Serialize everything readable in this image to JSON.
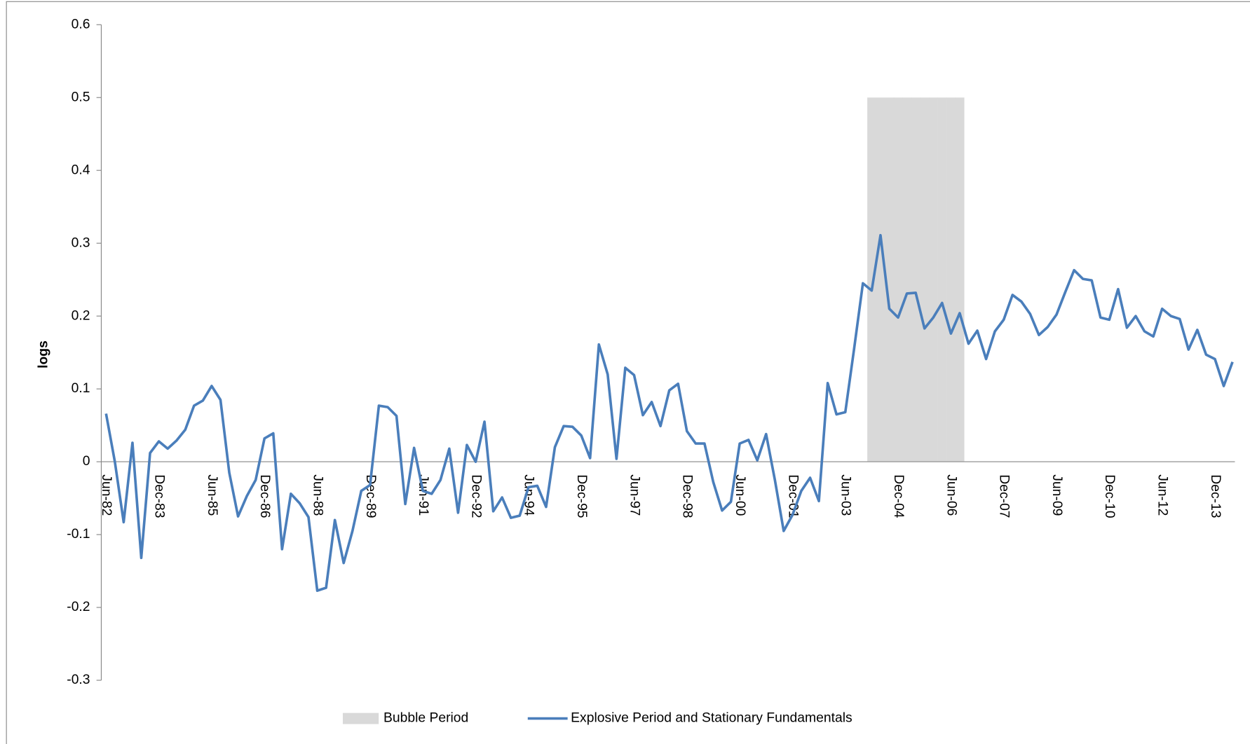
{
  "chart_data": {
    "type": "line",
    "y_label": "logs",
    "ylim": [
      -0.3,
      0.6
    ],
    "yticks": [
      -0.3,
      -0.2,
      -0.1,
      0,
      0.1,
      0.2,
      0.3,
      0.4,
      0.5,
      0.6
    ],
    "categories": [
      "Jun-82",
      null,
      null,
      null,
      null,
      null,
      "Dec-83",
      null,
      null,
      null,
      null,
      null,
      "Jun-85",
      null,
      null,
      null,
      null,
      null,
      "Dec-86",
      null,
      null,
      null,
      null,
      null,
      "Jun-88",
      null,
      null,
      null,
      null,
      null,
      "Dec-89",
      null,
      null,
      null,
      null,
      null,
      "Jun-91",
      null,
      null,
      null,
      null,
      null,
      "Dec-92",
      null,
      null,
      null,
      null,
      null,
      "Jun-94",
      null,
      null,
      null,
      null,
      null,
      "Dec-95",
      null,
      null,
      null,
      null,
      null,
      "Jun-97",
      null,
      null,
      null,
      null,
      null,
      "Dec-98",
      null,
      null,
      null,
      null,
      null,
      "Jun-00",
      null,
      null,
      null,
      null,
      null,
      "Dec-01",
      null,
      null,
      null,
      null,
      null,
      "Jun-03",
      null,
      null,
      null,
      null,
      null,
      "Dec-04",
      null,
      null,
      null,
      null,
      null,
      "Jun-06",
      null,
      null,
      null,
      null,
      null,
      "Dec-07",
      null,
      null,
      null,
      null,
      null,
      "Jun-09",
      null,
      null,
      null,
      null,
      null,
      "Dec-10",
      null,
      null,
      null,
      null,
      null,
      "Jun-12",
      null,
      null,
      null,
      null,
      null,
      "Dec-13",
      null,
      null
    ],
    "series": [
      {
        "name": "Bubble Period",
        "type": "bar",
        "color": "#d9d9d9",
        "values": [
          null,
          null,
          null,
          null,
          null,
          null,
          null,
          null,
          null,
          null,
          null,
          null,
          null,
          null,
          null,
          null,
          null,
          null,
          null,
          null,
          null,
          null,
          null,
          null,
          null,
          null,
          null,
          null,
          null,
          null,
          null,
          null,
          null,
          null,
          null,
          null,
          null,
          null,
          null,
          null,
          null,
          null,
          null,
          null,
          null,
          null,
          null,
          null,
          null,
          null,
          null,
          null,
          null,
          null,
          null,
          null,
          null,
          null,
          null,
          null,
          null,
          null,
          null,
          null,
          null,
          null,
          null,
          null,
          null,
          null,
          null,
          null,
          null,
          null,
          null,
          null,
          null,
          null,
          null,
          null,
          null,
          null,
          null,
          null,
          null,
          null,
          null,
          0.5,
          0.5,
          0.5,
          0.5,
          0.5,
          0.5,
          0.5,
          0.5,
          0.5,
          0.5,
          0.5,
          null,
          null,
          null,
          null,
          null,
          null,
          null,
          null,
          null,
          null,
          null,
          null,
          null,
          null,
          null,
          null,
          null,
          null,
          null,
          null,
          null,
          null,
          null,
          null,
          null,
          null,
          null,
          null,
          null,
          null,
          null
        ]
      },
      {
        "name": "Explosive Period and Stationary Fundamentals",
        "type": "line",
        "color": "#4a7ebb",
        "values": [
          0.066,
          0.0,
          -0.083,
          0.026,
          -0.132,
          0.012,
          0.028,
          0.018,
          0.029,
          0.044,
          0.077,
          0.084,
          0.104,
          0.085,
          -0.015,
          -0.075,
          -0.047,
          -0.025,
          0.032,
          0.039,
          -0.12,
          -0.044,
          -0.057,
          -0.076,
          -0.177,
          -0.173,
          -0.08,
          -0.139,
          -0.095,
          -0.04,
          -0.032,
          0.077,
          0.075,
          0.063,
          -0.058,
          0.019,
          -0.04,
          -0.044,
          -0.025,
          0.018,
          -0.07,
          0.023,
          0.0,
          0.055,
          -0.068,
          -0.049,
          -0.077,
          -0.074,
          -0.035,
          -0.033,
          -0.062,
          0.02,
          0.049,
          0.048,
          0.036,
          0.005,
          0.161,
          0.12,
          0.004,
          0.129,
          0.119,
          0.064,
          0.082,
          0.049,
          0.098,
          0.107,
          0.042,
          0.025,
          0.025,
          -0.028,
          -0.067,
          -0.055,
          0.025,
          0.03,
          0.002,
          0.038,
          -0.025,
          -0.095,
          -0.073,
          -0.04,
          -0.022,
          -0.054,
          0.108,
          0.065,
          0.068,
          0.155,
          0.245,
          0.235,
          0.311,
          0.21,
          0.198,
          0.231,
          0.232,
          0.183,
          0.198,
          0.218,
          0.176,
          0.204,
          0.162,
          0.18,
          0.141,
          0.179,
          0.195,
          0.229,
          0.22,
          0.203,
          0.174,
          0.185,
          0.202,
          0.233,
          0.263,
          0.251,
          0.249,
          0.198,
          0.195,
          0.237,
          0.184,
          0.2,
          0.179,
          0.172,
          0.21,
          0.2,
          0.196,
          0.154,
          0.181,
          0.147,
          0.141,
          0.104,
          0.137
        ]
      }
    ]
  }
}
